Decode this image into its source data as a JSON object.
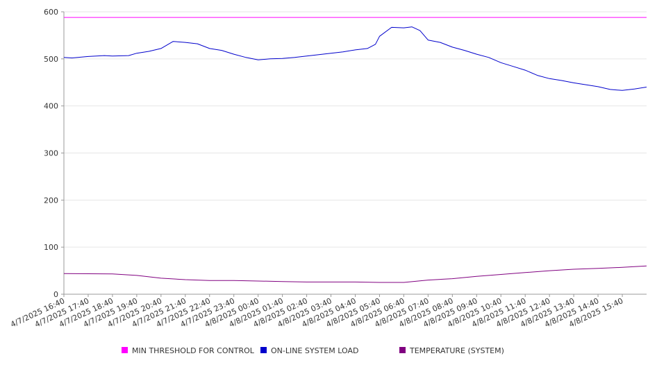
{
  "chart_data": {
    "type": "line",
    "title": "",
    "xlabel": "",
    "ylabel": "",
    "ylim": [
      0,
      600
    ],
    "yticks": [
      0,
      100,
      200,
      300,
      400,
      500,
      600
    ],
    "grid": true,
    "legend_position": "bottom",
    "x_tick_labels": [
      "4/7/2025 16:40",
      "4/7/2025 17:40",
      "4/7/2025 18:40",
      "4/7/2025 19:40",
      "4/7/2025 20:40",
      "4/7/2025 21:40",
      "4/7/2025 22:40",
      "4/7/2025 23:40",
      "4/8/2025 00:40",
      "4/8/2025 01:40",
      "4/8/2025 02:40",
      "4/8/2025 03:40",
      "4/8/2025 04:40",
      "4/8/2025 05:40",
      "4/8/2025 06:40",
      "4/8/2025 07:40",
      "4/8/2025 08:40",
      "4/8/2025 09:40",
      "4/8/2025 10:40",
      "4/8/2025 11:40",
      "4/8/2025 12:40",
      "4/8/2025 13:40",
      "4/8/2025 14:40",
      "4/8/2025 15:40"
    ],
    "x_range": [
      "4/7/2025 16:40",
      "4/8/2025 16:40"
    ],
    "series": [
      {
        "name": "MIN THRESHOLD FOR CONTROL",
        "color": "#ff00ff",
        "x": [
          "4/7/2025 16:40",
          "4/8/2025 16:40"
        ],
        "values": [
          588,
          588
        ]
      },
      {
        "name": "ON-LINE SYSTEM LOAD",
        "color": "#0000cc",
        "x": [
          "4/7/2025 16:40",
          "4/7/2025 17:00",
          "4/7/2025 17:40",
          "4/7/2025 18:20",
          "4/7/2025 18:40",
          "4/7/2025 19:20",
          "4/7/2025 19:40",
          "4/7/2025 20:10",
          "4/7/2025 20:40",
          "4/7/2025 21:10",
          "4/7/2025 21:40",
          "4/7/2025 22:10",
          "4/7/2025 22:40",
          "4/7/2025 23:10",
          "4/7/2025 23:40",
          "4/8/2025 00:10",
          "4/8/2025 00:40",
          "4/8/2025 01:10",
          "4/8/2025 01:40",
          "4/8/2025 02:10",
          "4/8/2025 02:40",
          "4/8/2025 03:10",
          "4/8/2025 03:40",
          "4/8/2025 04:10",
          "4/8/2025 04:40",
          "4/8/2025 05:10",
          "4/8/2025 05:30",
          "4/8/2025 05:40",
          "4/8/2025 06:10",
          "4/8/2025 06:40",
          "4/8/2025 07:00",
          "4/8/2025 07:20",
          "4/8/2025 07:40",
          "4/8/2025 08:10",
          "4/8/2025 08:40",
          "4/8/2025 09:10",
          "4/8/2025 09:40",
          "4/8/2025 10:10",
          "4/8/2025 10:40",
          "4/8/2025 11:10",
          "4/8/2025 11:40",
          "4/8/2025 12:10",
          "4/8/2025 12:40",
          "4/8/2025 13:10",
          "4/8/2025 13:40",
          "4/8/2025 14:10",
          "4/8/2025 14:40",
          "4/8/2025 15:10",
          "4/8/2025 15:40",
          "4/8/2025 16:10",
          "4/8/2025 16:40"
        ],
        "values": [
          503,
          502,
          505,
          507,
          506,
          507,
          512,
          516,
          522,
          537,
          535,
          532,
          522,
          518,
          510,
          503,
          498,
          500,
          501,
          503,
          506,
          509,
          512,
          515,
          519,
          522,
          531,
          548,
          567,
          566,
          568,
          560,
          540,
          535,
          525,
          518,
          510,
          503,
          492,
          484,
          476,
          465,
          458,
          454,
          449,
          445,
          441,
          435,
          433,
          436,
          440
        ]
      },
      {
        "name": "TEMPERATURE (SYSTEM)",
        "color": "#800080",
        "x": [
          "4/7/2025 16:40",
          "4/7/2025 18:40",
          "4/7/2025 19:40",
          "4/7/2025 20:40",
          "4/7/2025 21:40",
          "4/7/2025 22:40",
          "4/7/2025 23:40",
          "4/8/2025 00:40",
          "4/8/2025 01:40",
          "4/8/2025 02:40",
          "4/8/2025 03:40",
          "4/8/2025 04:40",
          "4/8/2025 05:40",
          "4/8/2025 06:40",
          "4/8/2025 07:40",
          "4/8/2025 08:40",
          "4/8/2025 09:40",
          "4/8/2025 10:40",
          "4/8/2025 11:40",
          "4/8/2025 12:40",
          "4/8/2025 13:40",
          "4/8/2025 14:40",
          "4/8/2025 15:40",
          "4/8/2025 16:40"
        ],
        "values": [
          44,
          43,
          40,
          34,
          31,
          29,
          29,
          28,
          27,
          26,
          26,
          26,
          25,
          25,
          30,
          33,
          38,
          42,
          46,
          50,
          53,
          55,
          57,
          60
        ]
      }
    ]
  }
}
